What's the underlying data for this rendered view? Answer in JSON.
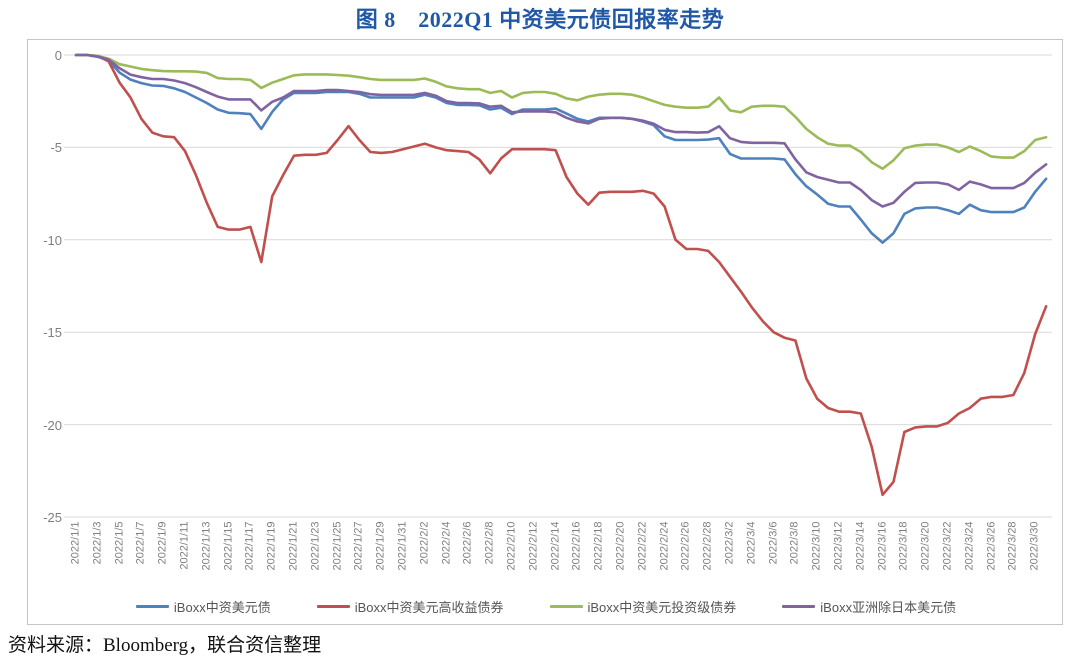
{
  "title": "图 8　2022Q1 中资美元债回报率走势",
  "source_note": "资料来源：Bloomberg，联合资信整理",
  "colors": {
    "title_blue": "#2158a6",
    "gridline": "#d9d9d9",
    "axis_text": "#7f7f7f",
    "legend_text": "#555555",
    "chart_border": "#c6c6c6"
  },
  "chart_data": {
    "type": "line",
    "title": "图 8　2022Q1 中资美元债回报率走势",
    "xlabel": "",
    "ylabel": "",
    "ylim": [
      -25,
      0
    ],
    "y_ticks": [
      0,
      -5,
      -10,
      -15,
      -20,
      -25
    ],
    "grid": "horizontal",
    "legend_position": "bottom",
    "x_tick_labels": [
      "2022/1/1",
      "2022/1/3",
      "2022/1/5",
      "2022/1/7",
      "2022/1/9",
      "2022/1/11",
      "2022/1/13",
      "2022/1/15",
      "2022/1/17",
      "2022/1/19",
      "2022/1/21",
      "2022/1/23",
      "2022/1/25",
      "2022/1/27",
      "2022/1/29",
      "2022/1/31",
      "2022/2/2",
      "2022/2/4",
      "2022/2/6",
      "2022/2/8",
      "2022/2/10",
      "2022/2/12",
      "2022/2/14",
      "2022/2/16",
      "2022/2/18",
      "2022/2/20",
      "2022/2/22",
      "2022/2/24",
      "2022/2/26",
      "2022/2/28",
      "2022/3/2",
      "2022/3/4",
      "2022/3/6",
      "2022/3/8",
      "2022/3/10",
      "2022/3/12",
      "2022/3/14",
      "2022/3/16",
      "2022/3/18",
      "2022/3/20",
      "2022/3/22",
      "2022/3/24",
      "2022/3/26",
      "2022/3/28",
      "2022/3/30"
    ],
    "x": [
      "2022/1/1",
      "2022/1/2",
      "2022/1/3",
      "2022/1/4",
      "2022/1/5",
      "2022/1/6",
      "2022/1/7",
      "2022/1/8",
      "2022/1/9",
      "2022/1/10",
      "2022/1/11",
      "2022/1/12",
      "2022/1/13",
      "2022/1/14",
      "2022/1/15",
      "2022/1/16",
      "2022/1/17",
      "2022/1/18",
      "2022/1/19",
      "2022/1/20",
      "2022/1/21",
      "2022/1/22",
      "2022/1/23",
      "2022/1/24",
      "2022/1/25",
      "2022/1/26",
      "2022/1/27",
      "2022/1/28",
      "2022/1/29",
      "2022/1/30",
      "2022/1/31",
      "2022/2/1",
      "2022/2/2",
      "2022/2/3",
      "2022/2/4",
      "2022/2/5",
      "2022/2/6",
      "2022/2/7",
      "2022/2/8",
      "2022/2/9",
      "2022/2/10",
      "2022/2/11",
      "2022/2/12",
      "2022/2/13",
      "2022/2/14",
      "2022/2/15",
      "2022/2/16",
      "2022/2/17",
      "2022/2/18",
      "2022/2/19",
      "2022/2/20",
      "2022/2/21",
      "2022/2/22",
      "2022/2/23",
      "2022/2/24",
      "2022/2/25",
      "2022/2/26",
      "2022/2/27",
      "2022/2/28",
      "2022/3/1",
      "2022/3/2",
      "2022/3/3",
      "2022/3/4",
      "2022/3/5",
      "2022/3/6",
      "2022/3/7",
      "2022/3/8",
      "2022/3/9",
      "2022/3/10",
      "2022/3/11",
      "2022/3/12",
      "2022/3/13",
      "2022/3/14",
      "2022/3/15",
      "2022/3/16",
      "2022/3/17",
      "2022/3/18",
      "2022/3/19",
      "2022/3/20",
      "2022/3/21",
      "2022/3/22",
      "2022/3/23",
      "2022/3/24",
      "2022/3/25",
      "2022/3/26",
      "2022/3/27",
      "2022/3/28",
      "2022/3/29",
      "2022/3/30",
      "2022/3/31"
    ],
    "series": [
      {
        "name": "iBoxx中资美元债",
        "color": "#4F81BD",
        "values": [
          0,
          0,
          -0.1,
          -0.3,
          -0.95,
          -1.33,
          -1.52,
          -1.65,
          -1.67,
          -1.8,
          -2.0,
          -2.3,
          -2.6,
          -2.95,
          -3.13,
          -3.15,
          -3.2,
          -4.0,
          -3.08,
          -2.4,
          -2.05,
          -2.05,
          -2.05,
          -2.0,
          -2.0,
          -2.0,
          -2.1,
          -2.3,
          -2.3,
          -2.3,
          -2.3,
          -2.3,
          -2.15,
          -2.3,
          -2.6,
          -2.7,
          -2.7,
          -2.72,
          -2.95,
          -2.85,
          -3.2,
          -2.95,
          -2.95,
          -2.95,
          -2.9,
          -3.17,
          -3.45,
          -3.6,
          -3.4,
          -3.4,
          -3.4,
          -3.45,
          -3.6,
          -3.8,
          -4.4,
          -4.6,
          -4.6,
          -4.6,
          -4.58,
          -4.5,
          -5.35,
          -5.6,
          -5.6,
          -5.6,
          -5.6,
          -5.65,
          -6.45,
          -7.1,
          -7.55,
          -8.05,
          -8.2,
          -8.2,
          -8.9,
          -9.65,
          -10.15,
          -9.65,
          -8.6,
          -8.3,
          -8.25,
          -8.25,
          -8.4,
          -8.6,
          -8.1,
          -8.4,
          -8.5,
          -8.5,
          -8.5,
          -8.25,
          -7.4,
          -6.7
        ]
      },
      {
        "name": "iBoxx中资美元高收益债券",
        "color": "#C0504D",
        "values": [
          0,
          0,
          -0.05,
          -0.35,
          -1.5,
          -2.3,
          -3.45,
          -4.2,
          -4.4,
          -4.45,
          -5.2,
          -6.5,
          -8.0,
          -9.3,
          -9.45,
          -9.45,
          -9.3,
          -11.2,
          -7.65,
          -6.5,
          -5.45,
          -5.4,
          -5.4,
          -5.3,
          -4.6,
          -3.85,
          -4.6,
          -5.25,
          -5.3,
          -5.25,
          -5.1,
          -4.95,
          -4.8,
          -5.0,
          -5.15,
          -5.2,
          -5.25,
          -5.65,
          -6.4,
          -5.6,
          -5.1,
          -5.1,
          -5.1,
          -5.1,
          -5.15,
          -6.6,
          -7.5,
          -8.1,
          -7.45,
          -7.4,
          -7.4,
          -7.4,
          -7.35,
          -7.5,
          -8.2,
          -10.0,
          -10.5,
          -10.5,
          -10.6,
          -11.2,
          -12.0,
          -12.8,
          -13.65,
          -14.4,
          -15.0,
          -15.3,
          -15.45,
          -17.5,
          -18.6,
          -19.1,
          -19.3,
          -19.3,
          -19.4,
          -21.2,
          -23.8,
          -23.1,
          -20.4,
          -20.15,
          -20.1,
          -20.1,
          -19.9,
          -19.4,
          -19.1,
          -18.6,
          -18.5,
          -18.5,
          -18.4,
          -17.2,
          -15.1,
          -13.6
        ]
      },
      {
        "name": "iBoxx中资美元投资级债券",
        "color": "#9BBB59",
        "values": [
          0,
          0,
          -0.05,
          -0.2,
          -0.5,
          -0.62,
          -0.75,
          -0.82,
          -0.87,
          -0.88,
          -0.88,
          -0.9,
          -0.97,
          -1.25,
          -1.3,
          -1.3,
          -1.35,
          -1.78,
          -1.5,
          -1.3,
          -1.1,
          -1.05,
          -1.05,
          -1.05,
          -1.08,
          -1.12,
          -1.2,
          -1.3,
          -1.35,
          -1.35,
          -1.35,
          -1.35,
          -1.27,
          -1.45,
          -1.7,
          -1.8,
          -1.85,
          -1.85,
          -2.05,
          -1.95,
          -2.3,
          -2.05,
          -2.0,
          -2.0,
          -2.1,
          -2.35,
          -2.45,
          -2.25,
          -2.15,
          -2.1,
          -2.1,
          -2.15,
          -2.3,
          -2.5,
          -2.7,
          -2.8,
          -2.85,
          -2.85,
          -2.8,
          -2.3,
          -3.0,
          -3.1,
          -2.8,
          -2.75,
          -2.75,
          -2.8,
          -3.35,
          -4.0,
          -4.45,
          -4.8,
          -4.9,
          -4.9,
          -5.25,
          -5.8,
          -6.15,
          -5.7,
          -5.05,
          -4.9,
          -4.85,
          -4.85,
          -5.0,
          -5.25,
          -4.95,
          -5.2,
          -5.5,
          -5.55,
          -5.55,
          -5.2,
          -4.6,
          -4.45
        ]
      },
      {
        "name": "iBoxx亚洲除日本美元债",
        "color": "#8064A2",
        "values": [
          0,
          0,
          -0.08,
          -0.25,
          -0.72,
          -1.06,
          -1.2,
          -1.3,
          -1.3,
          -1.38,
          -1.52,
          -1.74,
          -2.0,
          -2.25,
          -2.4,
          -2.4,
          -2.4,
          -3.0,
          -2.53,
          -2.3,
          -1.95,
          -1.95,
          -1.95,
          -1.9,
          -1.9,
          -1.95,
          -2.0,
          -2.12,
          -2.16,
          -2.16,
          -2.16,
          -2.16,
          -2.05,
          -2.2,
          -2.5,
          -2.6,
          -2.6,
          -2.62,
          -2.8,
          -2.75,
          -3.1,
          -3.05,
          -3.05,
          -3.05,
          -3.1,
          -3.4,
          -3.6,
          -3.7,
          -3.45,
          -3.4,
          -3.4,
          -3.45,
          -3.55,
          -3.72,
          -4.05,
          -4.17,
          -4.17,
          -4.2,
          -4.18,
          -3.86,
          -4.5,
          -4.7,
          -4.75,
          -4.75,
          -4.75,
          -4.78,
          -5.65,
          -6.35,
          -6.6,
          -6.75,
          -6.9,
          -6.9,
          -7.3,
          -7.85,
          -8.2,
          -8.0,
          -7.4,
          -6.92,
          -6.9,
          -6.9,
          -7.0,
          -7.3,
          -6.85,
          -7.0,
          -7.2,
          -7.2,
          -7.2,
          -6.92,
          -6.37,
          -5.92
        ]
      }
    ]
  }
}
